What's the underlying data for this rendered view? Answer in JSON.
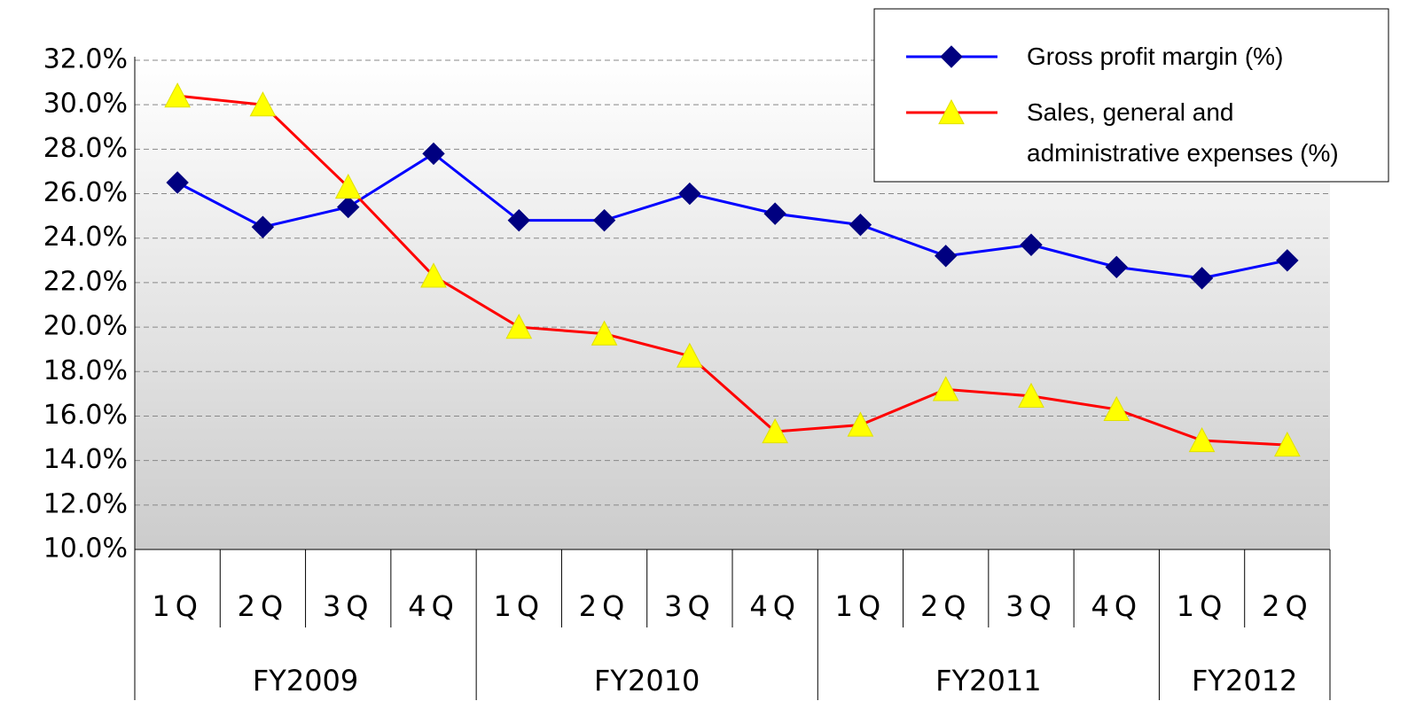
{
  "chart_data": {
    "type": "line",
    "groups": [
      {
        "name": "FY2009",
        "categories": [
          "1Q",
          "2Q",
          "3Q",
          "4Q"
        ]
      },
      {
        "name": "FY2010",
        "categories": [
          "1Q",
          "2Q",
          "3Q",
          "4Q"
        ]
      },
      {
        "name": "FY2011",
        "categories": [
          "1Q",
          "2Q",
          "3Q",
          "4Q"
        ]
      },
      {
        "name": "FY2012",
        "categories": [
          "1Q",
          "2Q"
        ]
      }
    ],
    "series": [
      {
        "name": "Gross profit margin (%)",
        "color": "#0000ff",
        "marker": "diamond",
        "marker_color": "#000080",
        "values": [
          26.5,
          24.5,
          25.4,
          27.8,
          24.8,
          24.8,
          26.0,
          25.1,
          24.6,
          23.2,
          23.7,
          22.7,
          22.2,
          23.0
        ]
      },
      {
        "name": "Sales, general and administrative expenses (%)",
        "color": "#ff0000",
        "marker": "triangle",
        "marker_color": "#ffff00",
        "values": [
          30.4,
          30.0,
          26.3,
          22.3,
          20.0,
          19.7,
          18.7,
          15.3,
          15.6,
          17.2,
          16.9,
          16.3,
          14.9,
          14.7
        ]
      }
    ],
    "ylim": [
      10,
      32
    ],
    "yticks": [
      {
        "value": 10,
        "label": "10.0%"
      },
      {
        "value": 12,
        "label": "12.0%"
      },
      {
        "value": 14,
        "label": "14.0%"
      },
      {
        "value": 16,
        "label": "16.0%"
      },
      {
        "value": 18,
        "label": "18.0%"
      },
      {
        "value": 20,
        "label": "20.0%"
      },
      {
        "value": 22,
        "label": "22.0%"
      },
      {
        "value": 24,
        "label": "24.0%"
      },
      {
        "value": 26,
        "label": "26.0%"
      },
      {
        "value": 28,
        "label": "28.0%"
      },
      {
        "value": 30,
        "label": "30.0%"
      },
      {
        "value": 32,
        "label": "32.0%"
      }
    ],
    "grid": true,
    "legend": "top-right"
  }
}
